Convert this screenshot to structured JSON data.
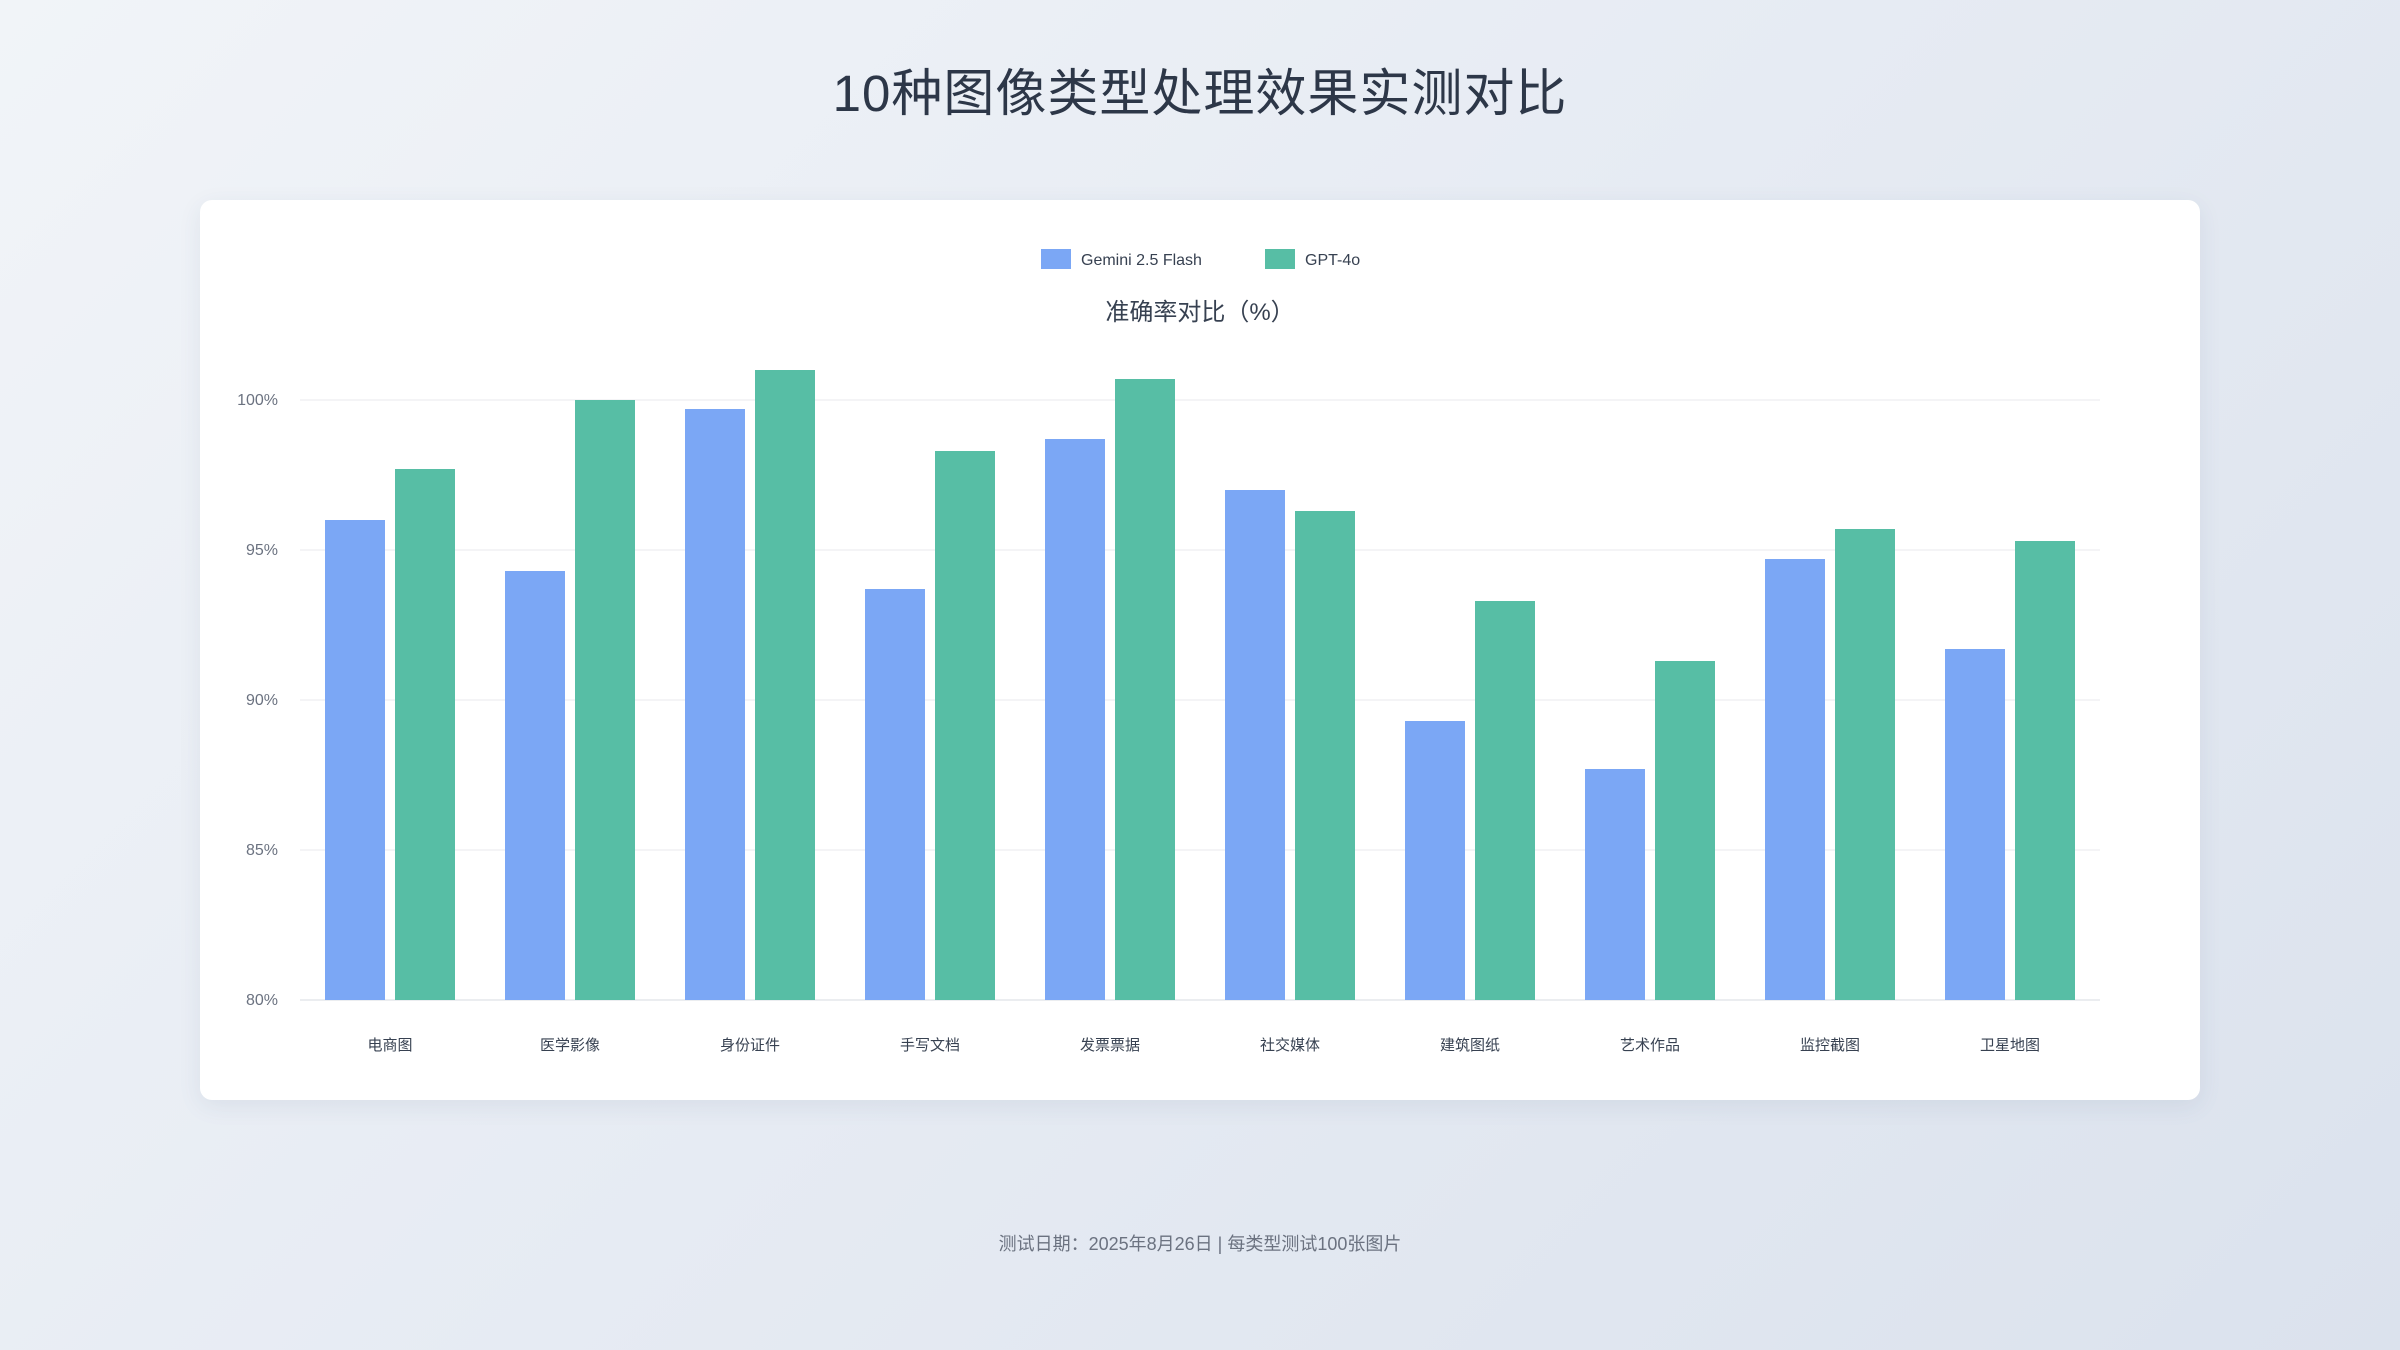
{
  "page": {
    "title": "10种图像类型处理效果实测对比",
    "footer": "测试日期：2025年8月26日 | 每类型测试100张图片"
  },
  "chart_data": {
    "type": "bar",
    "title": "准确率对比（%）",
    "categories": [
      "电商图",
      "医学影像",
      "身份证件",
      "手写文档",
      "发票票据",
      "社交媒体",
      "建筑图纸",
      "艺术作品",
      "监控截图",
      "卫星地图"
    ],
    "series": [
      {
        "name": "Gemini 2.5 Flash",
        "color": "#7ba7f5",
        "values": [
          96.0,
          94.3,
          99.7,
          93.7,
          98.7,
          97.0,
          89.3,
          87.7,
          94.7,
          91.7
        ]
      },
      {
        "name": "GPT-4o",
        "color": "#57bea5",
        "values": [
          97.7,
          100.0,
          101.0,
          98.3,
          100.7,
          96.3,
          93.3,
          91.3,
          95.7,
          95.3
        ]
      }
    ],
    "ylim": [
      80,
      100
    ],
    "yticks": [
      "80%",
      "85%",
      "90%",
      "95%",
      "100%"
    ],
    "legend_position": "top-center",
    "grid": true
  }
}
